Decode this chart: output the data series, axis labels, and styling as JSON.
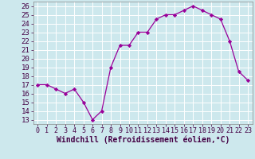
{
  "x": [
    0,
    1,
    2,
    3,
    4,
    5,
    6,
    7,
    8,
    9,
    10,
    11,
    12,
    13,
    14,
    15,
    16,
    17,
    18,
    19,
    20,
    21,
    22,
    23
  ],
  "y": [
    17.0,
    17.0,
    16.5,
    16.0,
    16.5,
    15.0,
    13.0,
    14.0,
    19.0,
    21.5,
    21.5,
    23.0,
    23.0,
    24.5,
    25.0,
    25.0,
    25.5,
    26.0,
    25.5,
    25.0,
    24.5,
    22.0,
    18.5,
    17.5
  ],
  "xlim": [
    -0.5,
    23.5
  ],
  "ylim": [
    12.5,
    26.5
  ],
  "yticks": [
    13,
    14,
    15,
    16,
    17,
    18,
    19,
    20,
    21,
    22,
    23,
    24,
    25,
    26
  ],
  "xtick_labels": [
    "0",
    "1",
    "2",
    "3",
    "4",
    "5",
    "6",
    "7",
    "8",
    "9",
    "10",
    "11",
    "12",
    "13",
    "14",
    "15",
    "16",
    "17",
    "18",
    "19",
    "20",
    "21",
    "22",
    "23"
  ],
  "xlabel": "Windchill (Refroidissement éolien,°C)",
  "line_color": "#990099",
  "marker_color": "#990099",
  "bg_color": "#cde8ed",
  "grid_color": "#b0d8de",
  "xlabel_fontsize": 7,
  "ytick_fontsize": 6.5,
  "xtick_fontsize": 6
}
